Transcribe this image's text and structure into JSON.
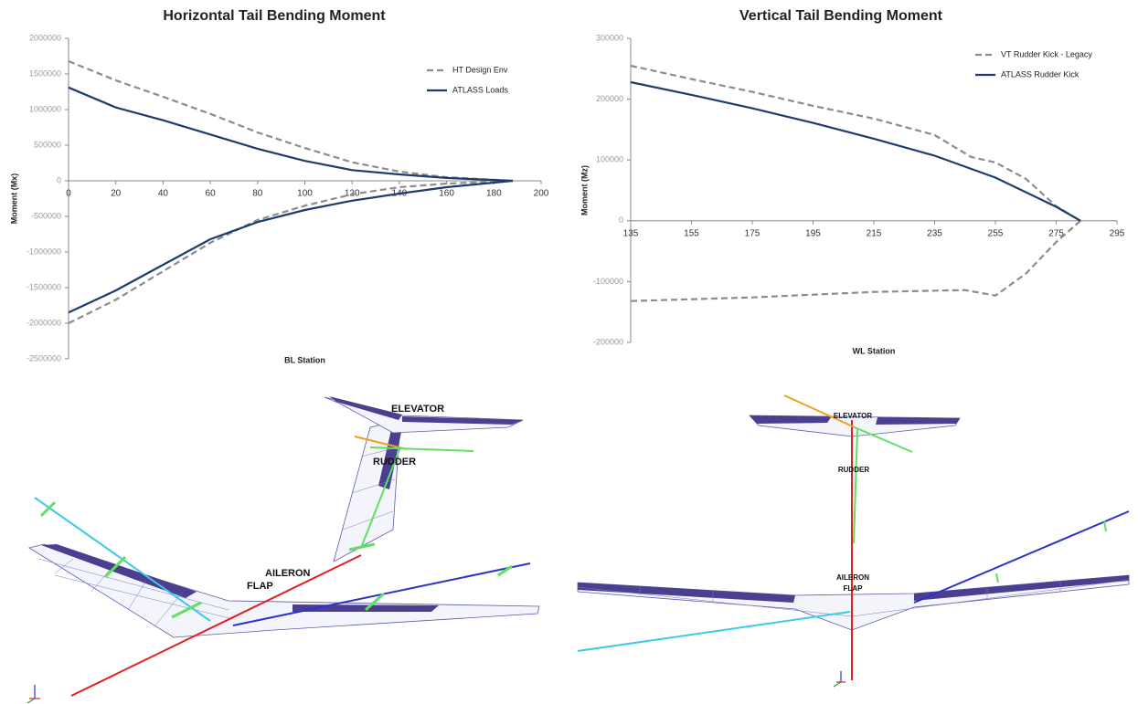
{
  "chart_data": [
    {
      "type": "line",
      "title": "Horizontal Tail Bending Moment",
      "xlabel": "BL Station",
      "ylabel": "Moment (Mx)",
      "xlim": [
        0,
        200
      ],
      "xticks": [
        0,
        20,
        40,
        60,
        80,
        100,
        120,
        140,
        160,
        180,
        200
      ],
      "ylim": [
        -2500000,
        2000000
      ],
      "yticks": [
        -2500000,
        -2000000,
        -1500000,
        -1000000,
        -500000,
        0,
        500000,
        1000000,
        1500000,
        2000000
      ],
      "legend": "upper right",
      "series": [
        {
          "name": "HT Design Env",
          "color": "#8c8c8c",
          "line_style": "dashed",
          "x": [
            0,
            20,
            40,
            60,
            80,
            100,
            120,
            140,
            160,
            188
          ],
          "values": [
            1680000,
            1410000,
            1180000,
            940000,
            680000,
            460000,
            260000,
            130000,
            50000,
            0
          ],
          "lower_values": [
            -2000000,
            -1670000,
            -1270000,
            -870000,
            -550000,
            -350000,
            -190000,
            -90000,
            -40000,
            0
          ]
        },
        {
          "name": "ATLASS Loads",
          "color": "#1f3d6b",
          "line_style": "solid",
          "x": [
            0,
            20,
            40,
            60,
            80,
            100,
            120,
            140,
            160,
            188
          ],
          "values": [
            1310000,
            1030000,
            850000,
            650000,
            450000,
            280000,
            150000,
            90000,
            40000,
            0
          ],
          "lower_values": [
            -1850000,
            -1540000,
            -1180000,
            -820000,
            -580000,
            -410000,
            -280000,
            -180000,
            -90000,
            0
          ]
        }
      ]
    },
    {
      "type": "line",
      "title": "Vertical Tail Bending Moment",
      "xlabel": "WL Station",
      "ylabel": "Moment (Mz)",
      "xlim": [
        135,
        295
      ],
      "xticks": [
        135,
        155,
        175,
        195,
        215,
        235,
        255,
        275,
        295
      ],
      "ylim": [
        -200000,
        300000
      ],
      "yticks": [
        -200000,
        -100000,
        0,
        100000,
        200000,
        300000
      ],
      "legend": "upper right",
      "series": [
        {
          "name": "VT Rudder Kick - Legacy",
          "color": "#8c8c8c",
          "line_style": "dashed",
          "x": [
            135,
            155,
            175,
            195,
            215,
            235,
            247,
            255,
            265,
            275,
            283
          ],
          "values": [
            255000,
            233000,
            212000,
            189000,
            168000,
            141000,
            105000,
            96000,
            69000,
            24000,
            0
          ],
          "lower_x": [
            135,
            175,
            215,
            245,
            255,
            265,
            275,
            283
          ],
          "lower_values": [
            -132000,
            -126000,
            -117000,
            -114000,
            -123000,
            -87000,
            -35000,
            0
          ]
        },
        {
          "name": "ATLASS Rudder Kick",
          "color": "#1f3d6b",
          "line_style": "solid",
          "x": [
            135,
            155,
            175,
            195,
            215,
            235,
            255,
            275,
            283
          ],
          "values": [
            228000,
            207000,
            185000,
            161000,
            135000,
            107000,
            71000,
            23000,
            0
          ]
        }
      ]
    }
  ],
  "diagrams": [
    {
      "labels": [
        "ELEVATOR",
        "RUDDER",
        "AILERON",
        "FLAP"
      ]
    },
    {
      "labels": [
        "ELEVATOR",
        "RUDDER",
        "AILERON",
        "FLAP"
      ]
    }
  ]
}
